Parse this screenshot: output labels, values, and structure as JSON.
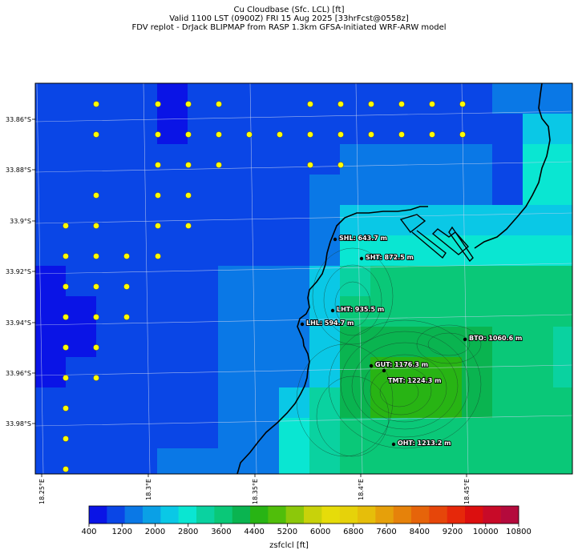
{
  "title": {
    "line1": "Cu Cloudbase (Sfc. LCL) [ft]",
    "line2": "Valid 1100 LST (0900Z) FRI 15 Aug 2025 [33hrFcst@0558z]",
    "line3": "FDV replot - DrJack BLIPMAP from RASP 1.3km GFSA-Initiated WRF-ARW model"
  },
  "axes": {
    "lat_ticks": [
      "33.86°S",
      "33.88°S",
      "33.9°S",
      "33.92°S",
      "33.94°S",
      "33.96°S",
      "33.98°S"
    ],
    "lon_ticks": [
      "18.25°E",
      "18.3°E",
      "18.35°E",
      "18.4°E",
      "18.45°E"
    ]
  },
  "sites": [
    {
      "label": "SHL: 643.7 m"
    },
    {
      "label": "SHT: 872.5 m"
    },
    {
      "label": "LHT: 935.5 m"
    },
    {
      "label": "LHL: 594.7 m"
    },
    {
      "label": "BTO: 1060.6 m"
    },
    {
      "label": "GUT: 1176.3 m"
    },
    {
      "label": "TMT: 1224.3 m"
    },
    {
      "label": "OHT: 1213.2 m"
    }
  ],
  "colorbar": {
    "title": "zsfclcl [ft]",
    "labels": [
      "400",
      "1200",
      "2000",
      "2800",
      "3600",
      "4400",
      "5200",
      "6000",
      "6800",
      "7600",
      "8400",
      "9200",
      "10000",
      "10800"
    ],
    "colors": [
      "#0a14e6",
      "#0a46e6",
      "#0a78e6",
      "#0aa0e6",
      "#0ac8e6",
      "#0ae6d2",
      "#0ad2a0",
      "#0ac878",
      "#0ab450",
      "#28b414",
      "#50be0a",
      "#8cc80a",
      "#c8d20a",
      "#e6dc0a",
      "#e6d20a",
      "#e6be0a",
      "#e6a00a",
      "#e6820a",
      "#e6640a",
      "#e6460a",
      "#e6280a",
      "#dc0f0f",
      "#c80a28",
      "#b40a3c"
    ]
  },
  "map_colors": {
    "deep_blue": "#0a14e6",
    "blue": "#0a46e6",
    "mid_blue": "#0a78e6",
    "light_blue": "#0ac8e6",
    "cyan": "#0ae6d2",
    "aqua_green": "#0ad2a0",
    "green": "#0ac878",
    "dark_green": "#0ab450",
    "grass_green": "#28b414",
    "dot_yellow": "#ffff00"
  }
}
